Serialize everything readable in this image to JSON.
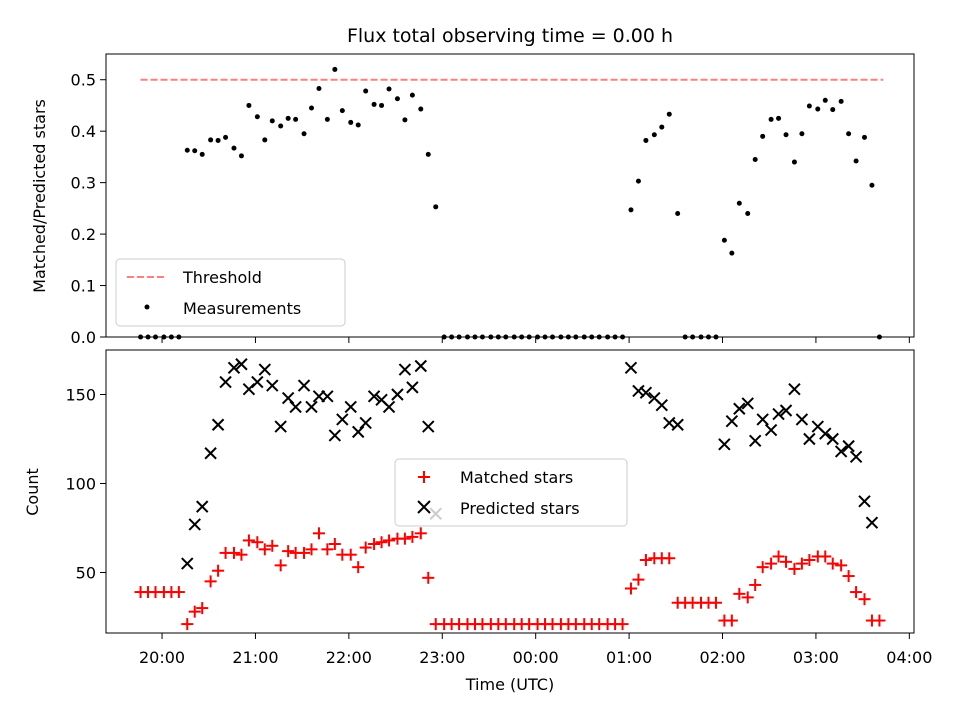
{
  "chart_data": [
    {
      "type": "scatter",
      "title": "Flux total observing time = 0.00 h",
      "ylabel": "Matched/Predicted stars",
      "ylim": [
        0,
        0.55
      ],
      "yticks": [
        "0.0",
        "0.1",
        "0.2",
        "0.3",
        "0.4",
        "0.5"
      ],
      "xlim": [
        19.4,
        28.05
      ],
      "legend": {
        "placement": "lower-left",
        "entries": [
          "Threshold",
          "Measurements"
        ]
      },
      "threshold": {
        "name": "Threshold",
        "y": 0.5,
        "x": [
          19.77,
          27.72
        ],
        "color": "#ff7f7f"
      },
      "series": [
        {
          "name": "Measurements",
          "color": "#000000",
          "points": [
            [
              19.77,
              0
            ],
            [
              19.85,
              0
            ],
            [
              19.93,
              0
            ],
            [
              20.02,
              0
            ],
            [
              20.1,
              0
            ],
            [
              20.18,
              0
            ],
            [
              20.27,
              0.363
            ],
            [
              20.35,
              0.362
            ],
            [
              20.43,
              0.355
            ],
            [
              20.52,
              0.383
            ],
            [
              20.6,
              0.382
            ],
            [
              20.68,
              0.388
            ],
            [
              20.77,
              0.367
            ],
            [
              20.85,
              0.352
            ],
            [
              20.93,
              0.45
            ],
            [
              21.02,
              0.428
            ],
            [
              21.1,
              0.383
            ],
            [
              21.18,
              0.42
            ],
            [
              21.27,
              0.41
            ],
            [
              21.35,
              0.425
            ],
            [
              21.43,
              0.423
            ],
            [
              21.52,
              0.395
            ],
            [
              21.6,
              0.445
            ],
            [
              21.68,
              0.483
            ],
            [
              21.77,
              0.423
            ],
            [
              21.85,
              0.52
            ],
            [
              21.93,
              0.44
            ],
            [
              22.02,
              0.417
            ],
            [
              22.1,
              0.412
            ],
            [
              22.18,
              0.478
            ],
            [
              22.27,
              0.452
            ],
            [
              22.35,
              0.45
            ],
            [
              22.43,
              0.482
            ],
            [
              22.52,
              0.463
            ],
            [
              22.6,
              0.422
            ],
            [
              22.68,
              0.47
            ],
            [
              22.77,
              0.443
            ],
            [
              22.85,
              0.355
            ],
            [
              22.93,
              0.253
            ],
            [
              23.02,
              0
            ],
            [
              23.1,
              0
            ],
            [
              23.18,
              0
            ],
            [
              23.27,
              0
            ],
            [
              23.35,
              0
            ],
            [
              23.43,
              0
            ],
            [
              23.52,
              0
            ],
            [
              23.6,
              0
            ],
            [
              23.68,
              0
            ],
            [
              23.77,
              0
            ],
            [
              23.85,
              0
            ],
            [
              23.93,
              0
            ],
            [
              24.02,
              0
            ],
            [
              24.1,
              0
            ],
            [
              24.18,
              0
            ],
            [
              24.27,
              0
            ],
            [
              24.35,
              0
            ],
            [
              24.43,
              0
            ],
            [
              24.52,
              0
            ],
            [
              24.6,
              0
            ],
            [
              24.68,
              0
            ],
            [
              24.77,
              0
            ],
            [
              24.85,
              0
            ],
            [
              24.93,
              0
            ],
            [
              25.02,
              0.247
            ],
            [
              25.1,
              0.303
            ],
            [
              25.18,
              0.382
            ],
            [
              25.27,
              0.393
            ],
            [
              25.35,
              0.408
            ],
            [
              25.43,
              0.433
            ],
            [
              25.52,
              0.24
            ],
            [
              25.6,
              0
            ],
            [
              25.68,
              0
            ],
            [
              25.77,
              0
            ],
            [
              25.85,
              0
            ],
            [
              25.93,
              0
            ],
            [
              26.02,
              0.188
            ],
            [
              26.1,
              0.163
            ],
            [
              26.18,
              0.26
            ],
            [
              26.27,
              0.24
            ],
            [
              26.35,
              0.345
            ],
            [
              26.43,
              0.39
            ],
            [
              26.52,
              0.423
            ],
            [
              26.6,
              0.425
            ],
            [
              26.68,
              0.393
            ],
            [
              26.77,
              0.34
            ],
            [
              26.85,
              0.395
            ],
            [
              26.93,
              0.449
            ],
            [
              27.02,
              0.443
            ],
            [
              27.1,
              0.46
            ],
            [
              27.18,
              0.442
            ],
            [
              27.27,
              0.458
            ],
            [
              27.35,
              0.395
            ],
            [
              27.43,
              0.342
            ],
            [
              27.52,
              0.388
            ],
            [
              27.6,
              0.295
            ],
            [
              27.68,
              0
            ]
          ]
        }
      ]
    },
    {
      "type": "scatter",
      "xlabel": "Time (UTC)",
      "ylabel": "Count",
      "ylim": [
        16,
        175
      ],
      "yticks": [
        "50",
        "100",
        "150"
      ],
      "xlim": [
        19.4,
        28.05
      ],
      "xticks": [
        "20:00",
        "21:00",
        "22:00",
        "23:00",
        "00:00",
        "01:00",
        "02:00",
        "03:00",
        "04:00"
      ],
      "legend": {
        "placement": "center",
        "entries": [
          "Matched stars",
          "Predicted stars"
        ]
      },
      "series": [
        {
          "name": "Matched stars",
          "marker": "+",
          "color": "#ff0000",
          "points": [
            [
              19.77,
              39
            ],
            [
              19.85,
              39
            ],
            [
              19.93,
              39
            ],
            [
              20.02,
              39
            ],
            [
              20.1,
              39
            ],
            [
              20.18,
              39
            ],
            [
              20.27,
              21
            ],
            [
              20.35,
              28
            ],
            [
              20.43,
              30
            ],
            [
              20.52,
              45
            ],
            [
              20.6,
              51
            ],
            [
              20.68,
              61
            ],
            [
              20.77,
              61
            ],
            [
              20.85,
              60
            ],
            [
              20.93,
              68
            ],
            [
              21.02,
              67
            ],
            [
              21.1,
              63
            ],
            [
              21.18,
              65
            ],
            [
              21.27,
              54
            ],
            [
              21.35,
              62
            ],
            [
              21.43,
              61
            ],
            [
              21.52,
              61
            ],
            [
              21.6,
              63
            ],
            [
              21.68,
              72
            ],
            [
              21.77,
              63
            ],
            [
              21.85,
              66
            ],
            [
              21.93,
              60
            ],
            [
              22.02,
              60
            ],
            [
              22.1,
              53
            ],
            [
              22.18,
              64
            ],
            [
              22.27,
              66
            ],
            [
              22.35,
              67
            ],
            [
              22.43,
              68
            ],
            [
              22.52,
              69
            ],
            [
              22.6,
              69
            ],
            [
              22.68,
              70
            ],
            [
              22.77,
              72
            ],
            [
              22.85,
              47
            ],
            [
              22.93,
              21
            ],
            [
              23.02,
              21
            ],
            [
              23.1,
              21
            ],
            [
              23.18,
              21
            ],
            [
              23.27,
              21
            ],
            [
              23.35,
              21
            ],
            [
              23.43,
              21
            ],
            [
              23.52,
              21
            ],
            [
              23.6,
              21
            ],
            [
              23.68,
              21
            ],
            [
              23.77,
              21
            ],
            [
              23.85,
              21
            ],
            [
              23.93,
              21
            ],
            [
              24.02,
              21
            ],
            [
              24.1,
              21
            ],
            [
              24.18,
              21
            ],
            [
              24.27,
              21
            ],
            [
              24.35,
              21
            ],
            [
              24.43,
              21
            ],
            [
              24.52,
              21
            ],
            [
              24.6,
              21
            ],
            [
              24.68,
              21
            ],
            [
              24.77,
              21
            ],
            [
              24.85,
              21
            ],
            [
              24.93,
              21
            ],
            [
              25.02,
              41
            ],
            [
              25.1,
              46
            ],
            [
              25.18,
              57
            ],
            [
              25.27,
              58
            ],
            [
              25.35,
              58
            ],
            [
              25.43,
              58
            ],
            [
              25.52,
              33
            ],
            [
              25.6,
              33
            ],
            [
              25.68,
              33
            ],
            [
              25.77,
              33
            ],
            [
              25.85,
              33
            ],
            [
              25.93,
              33
            ],
            [
              26.02,
              23
            ],
            [
              26.1,
              23
            ],
            [
              26.18,
              38
            ],
            [
              26.27,
              36
            ],
            [
              26.35,
              43
            ],
            [
              26.43,
              53
            ],
            [
              26.52,
              55
            ],
            [
              26.6,
              59
            ],
            [
              26.68,
              56
            ],
            [
              26.77,
              52
            ],
            [
              26.85,
              55
            ],
            [
              26.93,
              57
            ],
            [
              27.02,
              59
            ],
            [
              27.1,
              59
            ],
            [
              27.18,
              55
            ],
            [
              27.27,
              54
            ],
            [
              27.35,
              48
            ],
            [
              27.43,
              39
            ],
            [
              27.52,
              35
            ],
            [
              27.6,
              23
            ],
            [
              27.68,
              23
            ]
          ]
        },
        {
          "name": "Predicted stars",
          "marker": "x",
          "color": "#000000",
          "points": [
            [
              20.27,
              55
            ],
            [
              20.35,
              77
            ],
            [
              20.43,
              87
            ],
            [
              20.52,
              117
            ],
            [
              20.6,
              133
            ],
            [
              20.68,
              157
            ],
            [
              20.77,
              165
            ],
            [
              20.85,
              167
            ],
            [
              20.93,
              153
            ],
            [
              21.02,
              157
            ],
            [
              21.1,
              164
            ],
            [
              21.18,
              155
            ],
            [
              21.27,
              132
            ],
            [
              21.35,
              148
            ],
            [
              21.43,
              143
            ],
            [
              21.52,
              155
            ],
            [
              21.6,
              143
            ],
            [
              21.68,
              149
            ],
            [
              21.77,
              149
            ],
            [
              21.85,
              127
            ],
            [
              21.93,
              136
            ],
            [
              22.02,
              143
            ],
            [
              22.1,
              129
            ],
            [
              22.18,
              134
            ],
            [
              22.27,
              149
            ],
            [
              22.35,
              147
            ],
            [
              22.43,
              143
            ],
            [
              22.52,
              150
            ],
            [
              22.6,
              164
            ],
            [
              22.68,
              154
            ],
            [
              22.77,
              166
            ],
            [
              22.85,
              132
            ],
            [
              22.93,
              83
            ],
            [
              25.02,
              165
            ],
            [
              25.1,
              152
            ],
            [
              25.18,
              151
            ],
            [
              25.27,
              148
            ],
            [
              25.35,
              144
            ],
            [
              25.43,
              134
            ],
            [
              25.52,
              133
            ],
            [
              26.02,
              122
            ],
            [
              26.1,
              135
            ],
            [
              26.18,
              142
            ],
            [
              26.27,
              145
            ],
            [
              26.35,
              124
            ],
            [
              26.43,
              136
            ],
            [
              26.52,
              130
            ],
            [
              26.6,
              139
            ],
            [
              26.68,
              141
            ],
            [
              26.77,
              153
            ],
            [
              26.85,
              136
            ],
            [
              26.93,
              125
            ],
            [
              27.02,
              132
            ],
            [
              27.1,
              128
            ],
            [
              27.18,
              125
            ],
            [
              27.27,
              118
            ],
            [
              27.35,
              121
            ],
            [
              27.43,
              115
            ],
            [
              27.52,
              90
            ],
            [
              27.6,
              78
            ]
          ]
        }
      ]
    }
  ]
}
